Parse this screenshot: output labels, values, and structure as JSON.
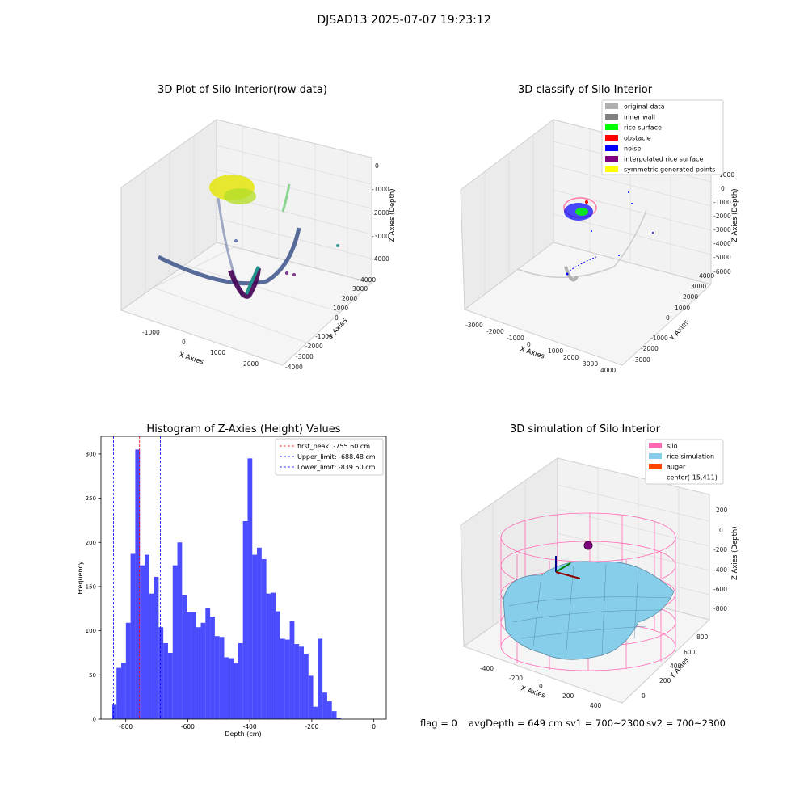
{
  "figure": {
    "title": "DJSAD13 2025-07-07 19:23:12"
  },
  "panels": {
    "raw": {
      "title": "3D Plot of Silo Interior(row data)",
      "xlabel": "X Axies",
      "ylabel": "Y Axies",
      "zlabel": "Z Axies (Depth)",
      "xticks": [
        "-1000",
        "0",
        "1000",
        "2000"
      ],
      "yticks": [
        "-4000",
        "-3000",
        "-2000",
        "-1000",
        "0",
        "1000",
        "2000",
        "3000",
        "4000"
      ],
      "zticks": [
        "-4000",
        "-3000",
        "-2000",
        "-1000",
        "0"
      ]
    },
    "classify": {
      "title": "3D classify of Silo Interior",
      "xlabel": "X Axies",
      "ylabel": "Y Axies",
      "zlabel": "Z Axies (Depth)",
      "xticks": [
        "-3000",
        "-2000",
        "-1000",
        "0",
        "1000",
        "2000",
        "3000",
        "4000"
      ],
      "yticks": [
        "-3000",
        "-2000",
        "-1000",
        "0",
        "1000",
        "2000",
        "3000",
        "4000"
      ],
      "zticks": [
        "-6000",
        "-5000",
        "-4000",
        "-3000",
        "-2000",
        "-1000",
        "0",
        "1000"
      ],
      "legend": [
        {
          "label": "original data",
          "color": "#b0b0b0"
        },
        {
          "label": "inner wall",
          "color": "#808080"
        },
        {
          "label": "rice surface",
          "color": "#00ff00"
        },
        {
          "label": "obstacle",
          "color": "#ff0000"
        },
        {
          "label": "noise",
          "color": "#0000ff"
        },
        {
          "label": "interpolated rice surface",
          "color": "#800080"
        },
        {
          "label": "symmetric generated points",
          "color": "#ffff00"
        }
      ]
    },
    "simulation": {
      "title": "3D simulation of Silo Interior",
      "xlabel": "X Axies",
      "ylabel": "Y Axies",
      "zlabel": "Z Axies (Depth)",
      "xticks": [
        "-400",
        "-200",
        "0",
        "200",
        "400"
      ],
      "yticks": [
        "0",
        "200",
        "400",
        "600",
        "800"
      ],
      "zticks": [
        "-800",
        "-600",
        "-400",
        "-200",
        "0",
        "200"
      ],
      "legend": [
        {
          "label": "silo",
          "color": "#ff69b4"
        },
        {
          "label": "rice simulation",
          "color": "#87ceeb"
        },
        {
          "label": "auger",
          "color": "#ff4500"
        },
        {
          "label": "center(-15,411)",
          "color": ""
        }
      ]
    }
  },
  "chart_data": {
    "type": "bar",
    "title": "Histogram of Z-Axies (Height) Values",
    "xlabel": "Depth (cm)",
    "ylabel": "Frequency",
    "xlim": [
      -880,
      40
    ],
    "ylim": [
      0,
      320
    ],
    "xticks": [
      -800,
      -600,
      -400,
      -200,
      0
    ],
    "yticks": [
      0,
      50,
      100,
      150,
      200,
      250,
      300
    ],
    "bar_color": "#0000ff",
    "bin_start": -845,
    "bin_width": 15.1,
    "values": [
      17,
      58,
      64,
      109,
      187,
      305,
      174,
      186,
      142,
      161,
      104,
      86,
      75,
      174,
      200,
      140,
      121,
      121,
      104,
      109,
      126,
      116,
      94,
      93,
      70,
      69,
      63,
      86,
      224,
      295,
      186,
      194,
      181,
      142,
      143,
      122,
      91,
      90,
      111,
      85,
      82,
      74,
      49,
      14,
      91,
      30,
      20,
      9,
      1
    ],
    "vlines": [
      {
        "x": -755.6,
        "label": "first_peak: -755.60 cm",
        "color": "#ff0000"
      },
      {
        "x": -688.48,
        "label": "Upper_limit: -688.48 cm",
        "color": "#0000ff"
      },
      {
        "x": -839.5,
        "label": "Lower_limit: -839.50 cm",
        "color": "#0000ff"
      }
    ],
    "legend_position": "top-right"
  },
  "footer": {
    "flag": "flag = 0",
    "avg_depth": "avgDepth = 649 cm",
    "sv1": "sv1 = 700~2300",
    "sv2": "sv2 = 700~2300"
  }
}
